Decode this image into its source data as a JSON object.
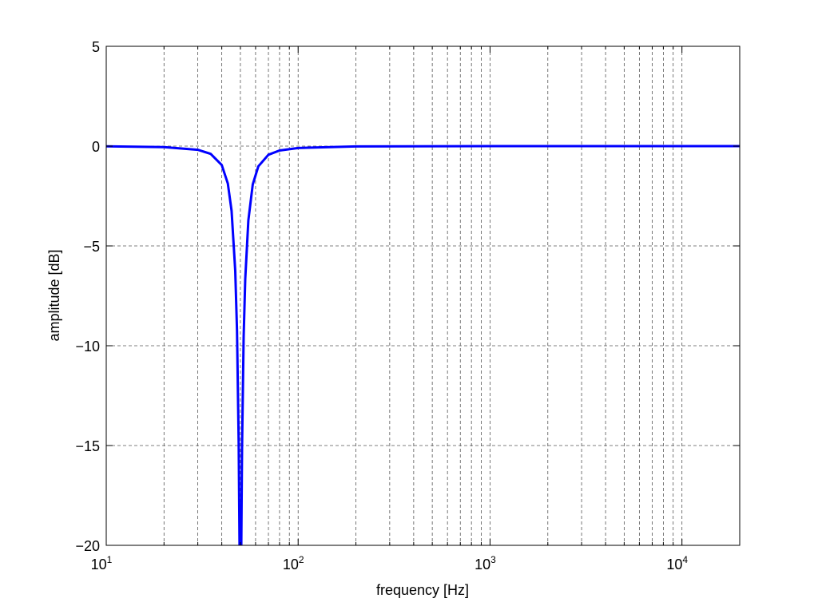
{
  "chart_data": {
    "type": "line",
    "title": "",
    "xlabel": "frequency [Hz]",
    "ylabel": "amplitude [dB]",
    "xscale": "log",
    "xlim": [
      10,
      20000
    ],
    "ylim": [
      -20,
      5
    ],
    "grid": true,
    "xticks": [
      {
        "base": "10",
        "exp": "1",
        "value": 10
      },
      {
        "base": "10",
        "exp": "2",
        "value": 100
      },
      {
        "base": "10",
        "exp": "3",
        "value": 1000
      },
      {
        "base": "10",
        "exp": "4",
        "value": 10000
      }
    ],
    "yticks": [
      {
        "label": "5",
        "value": 5
      },
      {
        "label": "0",
        "value": 0
      },
      {
        "label": "−5",
        "value": -5
      },
      {
        "label": "−10",
        "value": -10
      },
      {
        "label": "−15",
        "value": -15
      },
      {
        "label": "−20",
        "value": -20
      }
    ],
    "line_color": "#0000ff",
    "series": [
      {
        "x": [
          10,
          20,
          30,
          35,
          40,
          43,
          45,
          47,
          48,
          49,
          49.5,
          50,
          50.5,
          51,
          52,
          53,
          55,
          58,
          62,
          70,
          80,
          100,
          200,
          1000,
          20000
        ],
        "y": [
          -0.009,
          -0.048,
          -0.184,
          -0.386,
          -0.947,
          -1.87,
          -3.24,
          -6.25,
          -9.25,
          -14.9,
          -20.9,
          -40,
          -21.0,
          -15.1,
          -9.55,
          -6.66,
          -3.72,
          -1.92,
          -1.01,
          -0.434,
          -0.22,
          -0.094,
          -0.015,
          0,
          0
        ]
      }
    ]
  }
}
